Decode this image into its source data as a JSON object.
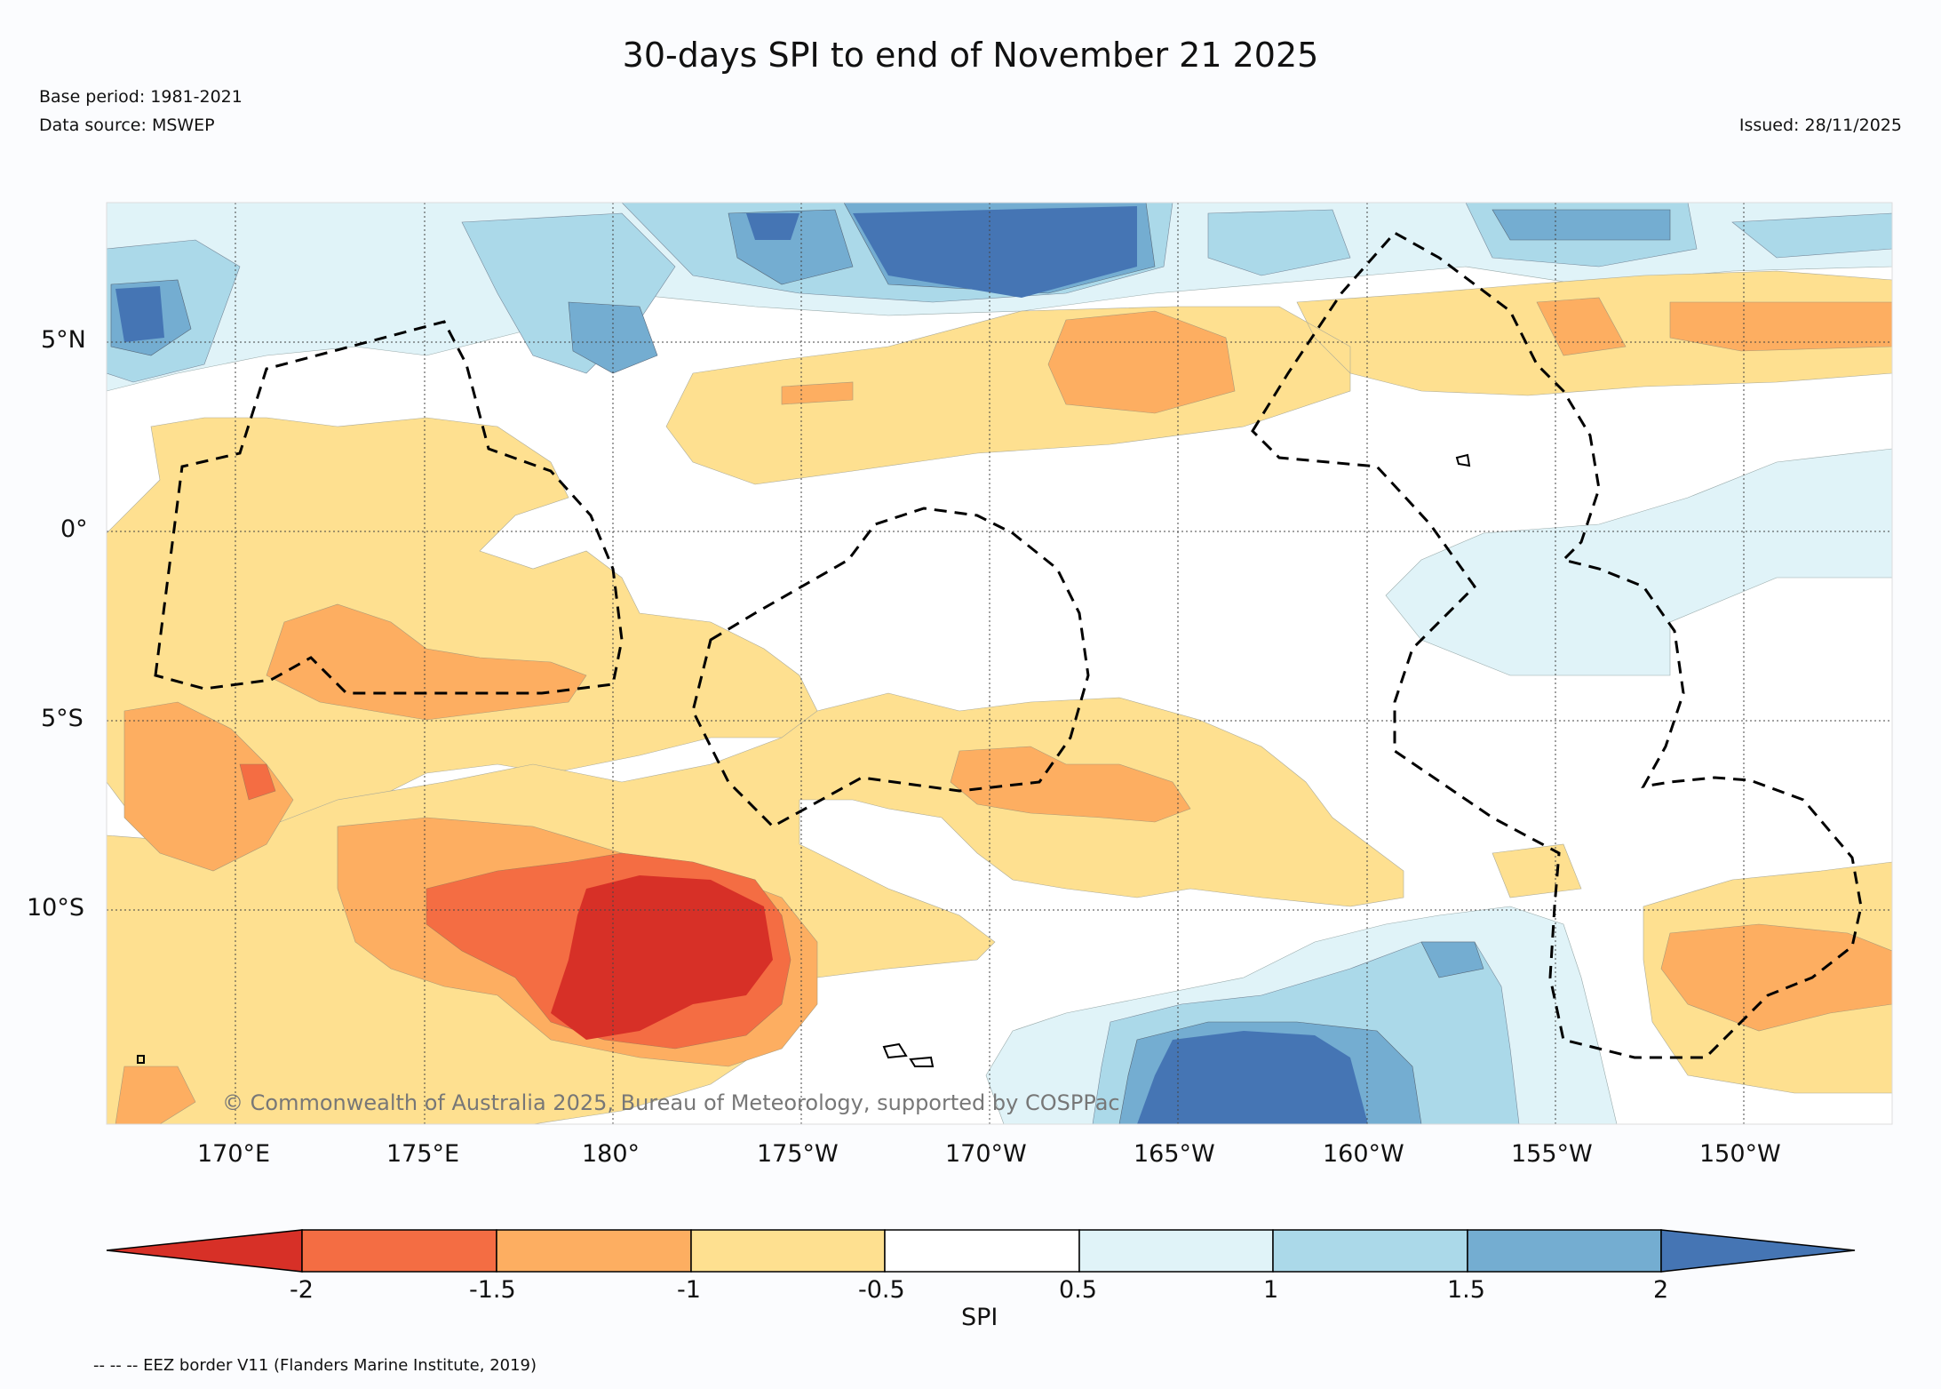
{
  "header": {
    "title": "30-days SPI to end of November 21 2025",
    "base_period": "Base period: 1981-2021",
    "data_source": "Data source: MSWEP",
    "issued": "Issued: 28/11/2025"
  },
  "map": {
    "copyright": "© Commonwealth of Australia 2025, Bureau of Meteorology, supported by COSPPac",
    "lon_labels": [
      "170°E",
      "175°E",
      "180°",
      "175°W",
      "170°W",
      "165°W",
      "160°W",
      "155°W",
      "150°W"
    ],
    "lat_labels": [
      "5°N",
      "0°",
      "5°S",
      "10°S"
    ]
  },
  "colorbar": {
    "label": "SPI",
    "ticks": [
      "-2",
      "-1.5",
      "-1",
      "-0.5",
      "0.5",
      "1",
      "1.5",
      "2"
    ],
    "colors": [
      "#d73027",
      "#f46d43",
      "#fdae61",
      "#fee090",
      "#ffffff",
      "#e0f3f8",
      "#abd9e9",
      "#74add1",
      "#4575b4"
    ]
  },
  "footnote": "-- -- -- EEZ border V11 (Flanders Marine Institute, 2019)"
}
